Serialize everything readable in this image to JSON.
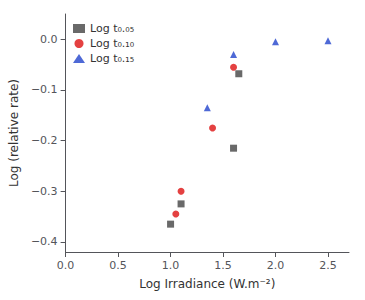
{
  "chart_data": {
    "type": "scatter",
    "xlabel": "Log Irradiance (W.m⁻²)",
    "ylabel": "Log (relative rate)",
    "xlim": [
      0,
      2.7
    ],
    "ylim": [
      -0.42,
      0.05
    ],
    "xticks": [
      {
        "value": 0,
        "label": "0.0"
      },
      0.5,
      {
        "value": 1.0,
        "label": "1.0"
      },
      1.5,
      {
        "value": 2.0,
        "label": "2.0"
      },
      2.5
    ],
    "yticks": [
      {
        "value": 0,
        "label": "0.0"
      },
      {
        "value": -0.1,
        "label": "−0.1"
      },
      {
        "value": -0.2,
        "label": "−0.2"
      },
      {
        "value": -0.3,
        "label": "−0.3"
      },
      {
        "value": -0.4,
        "label": "−0.4"
      }
    ],
    "grid": false,
    "legend": "upper left",
    "series": [
      {
        "name": "Log t₀.₀₅",
        "color": "#444444",
        "marker": "square",
        "x": [
          1.0,
          1.1,
          1.6,
          1.65
        ],
        "values": [
          -0.365,
          -0.325,
          -0.215,
          -0.068
        ]
      },
      {
        "name": "Log t₀.₁₀",
        "color": "#dd1111",
        "marker": "circle",
        "x": [
          1.05,
          1.1,
          1.4,
          1.6
        ],
        "values": [
          -0.345,
          -0.3,
          -0.175,
          -0.055
        ]
      },
      {
        "name": "Log t₀.₁₅",
        "color": "#2244cc",
        "marker": "triangle",
        "x": [
          1.35,
          1.6,
          2.0,
          2.5
        ],
        "values": [
          -0.135,
          -0.03,
          -0.005,
          -0.003
        ]
      }
    ]
  }
}
